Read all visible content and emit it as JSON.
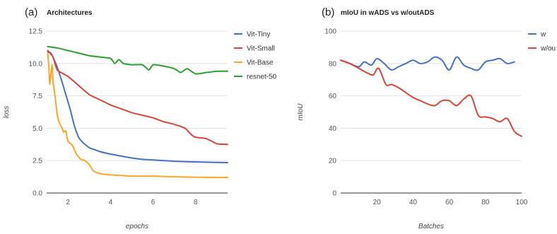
{
  "chart_data": [
    {
      "type": "line",
      "panel_label": "(a)",
      "title": "Architectures",
      "xlabel": "epochs",
      "ylabel": "loss",
      "xlim": [
        1,
        9.5
      ],
      "ylim": [
        0,
        12.5
      ],
      "x_ticks": [
        2,
        4,
        6,
        8
      ],
      "y_ticks": [
        0.0,
        2.5,
        5.0,
        7.5,
        10.0,
        12.5
      ],
      "y_tick_labels": [
        "0.0",
        "2.5",
        "5.0",
        "7.5",
        "10.0",
        "12.5"
      ],
      "grid": "horizontal",
      "legend_position": "right",
      "series": [
        {
          "name": "Vit-Tiny",
          "color": "#4472c4",
          "x": [
            1.05,
            1.2,
            1.35,
            1.5,
            1.7,
            1.9,
            2.1,
            2.3,
            2.5,
            2.7,
            3.0,
            3.5,
            4.0,
            4.5,
            5.0,
            5.5,
            6.0,
            6.5,
            7.0,
            7.5,
            8.0,
            8.5,
            9.0,
            9.5
          ],
          "y": [
            10.9,
            10.8,
            10.3,
            9.7,
            8.7,
            7.6,
            6.5,
            5.2,
            4.3,
            3.9,
            3.5,
            3.2,
            3.0,
            2.85,
            2.7,
            2.6,
            2.55,
            2.5,
            2.45,
            2.42,
            2.4,
            2.38,
            2.36,
            2.35
          ]
        },
        {
          "name": "Vit-Small",
          "color": "#db4437",
          "x": [
            1.05,
            1.3,
            1.5,
            2.0,
            2.5,
            3.0,
            3.5,
            4.0,
            4.5,
            5.0,
            5.5,
            6.0,
            6.5,
            7.0,
            7.5,
            7.8,
            8.0,
            8.5,
            9.0,
            9.5
          ],
          "y": [
            11.0,
            10.5,
            9.5,
            9.0,
            8.3,
            7.6,
            7.2,
            6.8,
            6.5,
            6.2,
            6.0,
            5.8,
            5.5,
            5.3,
            5.0,
            4.5,
            4.3,
            4.2,
            3.8,
            3.75
          ]
        },
        {
          "name": "Vit-Base",
          "color": "#f9a825",
          "x": [
            1.05,
            1.1,
            1.15,
            1.25,
            1.3,
            1.4,
            1.5,
            1.6,
            1.7,
            1.8,
            1.9,
            2.0,
            2.2,
            2.4,
            2.6,
            2.8,
            3.0,
            3.2,
            3.5,
            4.0,
            4.5,
            5.0,
            6.0,
            7.0,
            8.0,
            9.0,
            9.5
          ],
          "y": [
            10.8,
            9.8,
            8.4,
            9.9,
            8.6,
            7.4,
            6.0,
            5.4,
            5.1,
            4.7,
            4.8,
            4.0,
            3.7,
            3.0,
            2.6,
            2.5,
            2.2,
            1.7,
            1.5,
            1.4,
            1.35,
            1.3,
            1.3,
            1.25,
            1.22,
            1.2,
            1.2
          ]
        },
        {
          "name": "resnet-50",
          "color": "#2ca02c",
          "x": [
            1.05,
            1.5,
            2.0,
            2.5,
            3.0,
            3.5,
            4.0,
            4.2,
            4.4,
            4.6,
            5.0,
            5.5,
            5.8,
            6.0,
            6.5,
            7.0,
            7.3,
            7.6,
            8.0,
            8.5,
            9.0,
            9.5
          ],
          "y": [
            11.3,
            11.2,
            11.0,
            10.8,
            10.6,
            10.5,
            10.4,
            10.0,
            10.3,
            10.0,
            9.9,
            9.9,
            9.5,
            9.9,
            9.8,
            9.6,
            9.3,
            9.6,
            9.2,
            9.3,
            9.4,
            9.4
          ]
        }
      ]
    },
    {
      "type": "line",
      "panel_label": "(b)",
      "title": "mIoU in wADS vs w/outADS",
      "xlabel": "Batches",
      "ylabel": "mIoU",
      "xlim": [
        0,
        100
      ],
      "ylim": [
        0,
        100
      ],
      "x_ticks": [
        20,
        40,
        60,
        80,
        100
      ],
      "y_ticks": [
        0,
        20,
        40,
        60,
        80,
        100
      ],
      "y_tick_labels": [
        "0",
        "20",
        "40",
        "60",
        "80",
        "100"
      ],
      "grid": "horizontal",
      "legend_position": "right",
      "series": [
        {
          "name": "w",
          "color": "#4472c4",
          "x": [
            0,
            5,
            10,
            13,
            17,
            20,
            24,
            28,
            32,
            36,
            40,
            44,
            48,
            52,
            56,
            60,
            64,
            68,
            72,
            76,
            80,
            84,
            88,
            92,
            96
          ],
          "y": [
            82,
            80,
            78,
            81,
            79,
            83,
            80,
            76,
            78,
            80,
            82,
            80,
            81,
            84,
            82,
            76,
            84,
            79,
            77,
            76,
            81,
            82,
            83,
            80,
            81
          ]
        },
        {
          "name": "w/ou",
          "color": "#db4437",
          "x": [
            0,
            5,
            10,
            15,
            18,
            21,
            25,
            28,
            32,
            36,
            40,
            44,
            48,
            52,
            56,
            60,
            64,
            68,
            72,
            76,
            80,
            84,
            88,
            92,
            96,
            100
          ],
          "y": [
            82,
            80,
            77,
            74,
            73,
            77,
            67,
            67,
            65,
            62,
            59,
            57,
            55,
            54,
            57,
            57,
            54,
            58,
            60,
            48,
            47,
            46,
            44,
            46,
            38,
            35
          ]
        }
      ]
    }
  ]
}
